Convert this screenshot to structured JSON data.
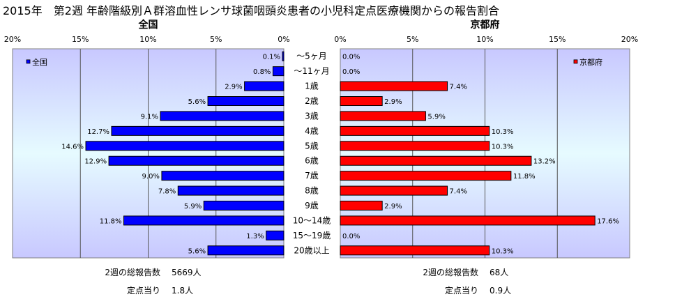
{
  "page": {
    "title": "2015年　第2週 年齢階級別Ａ群溶血性レンサ球菌咽頭炎患者の小児科定点医療機関からの報告割合"
  },
  "chart_data": [
    {
      "type": "bar",
      "orientation": "horizontal",
      "title": "全国",
      "legend": {
        "label": "全国",
        "position": "top-left"
      },
      "color": "#0000ff",
      "categories": [
        "～5ヶ月",
        "～11ヶ月",
        "1歳",
        "2歳",
        "3歳",
        "4歳",
        "5歳",
        "6歳",
        "7歳",
        "8歳",
        "9歳",
        "10～14歳",
        "15～19歳",
        "20歳以上"
      ],
      "values": [
        0.1,
        0.8,
        2.9,
        5.6,
        9.1,
        12.7,
        14.6,
        12.9,
        9.0,
        7.8,
        5.9,
        11.8,
        1.3,
        5.6
      ],
      "value_labels": [
        "0.1%",
        "0.8%",
        "2.9%",
        "5.6%",
        "9.1%",
        "12.7%",
        "14.6%",
        "12.9%",
        "9.0%",
        "7.8%",
        "5.9%",
        "11.8%",
        "1.3%",
        "5.6%"
      ],
      "xlim": [
        0,
        20
      ],
      "reversed": true,
      "xticks": [
        "20%",
        "15%",
        "10%",
        "5%",
        "0%"
      ],
      "grid": true
    },
    {
      "type": "bar",
      "orientation": "horizontal",
      "title": "京都府",
      "legend": {
        "label": "京都府",
        "position": "top-right"
      },
      "color": "#ff0000",
      "categories": [
        "～5ヶ月",
        "～11ヶ月",
        "1歳",
        "2歳",
        "3歳",
        "4歳",
        "5歳",
        "6歳",
        "7歳",
        "8歳",
        "9歳",
        "10～14歳",
        "15～19歳",
        "20歳以上"
      ],
      "values": [
        0.0,
        0.0,
        7.4,
        2.9,
        5.9,
        10.3,
        10.3,
        13.2,
        11.8,
        7.4,
        2.9,
        17.6,
        0.0,
        10.3
      ],
      "value_labels": [
        "0.0%",
        "0.0%",
        "7.4%",
        "2.9%",
        "5.9%",
        "10.3%",
        "10.3%",
        "13.2%",
        "11.8%",
        "7.4%",
        "2.9%",
        "17.6%",
        "0.0%",
        "10.3%"
      ],
      "xlim": [
        0,
        20
      ],
      "reversed": false,
      "xticks": [
        "0%",
        "5%",
        "10%",
        "15%",
        "20%"
      ],
      "grid": true
    }
  ],
  "footer": {
    "national": {
      "reports_label": "2週の総報告数",
      "reports_value": "5669人",
      "per_site_label": "定点当り",
      "per_site_value": "1.8人"
    },
    "kyoto": {
      "reports_label": "2週の総報告数",
      "reports_value": "68人",
      "per_site_label": "定点当り",
      "per_site_value": "0.9人"
    }
  }
}
